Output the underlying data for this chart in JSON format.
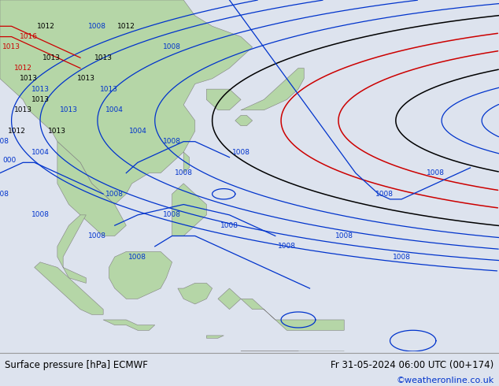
{
  "title_left": "Surface pressure [hPa] ECMWF",
  "title_right": "Fr 31-05-2024 06:00 UTC (00+174)",
  "credit": "©weatheronline.co.uk",
  "land_color": "#b5d6a7",
  "ocean_color": "#d4dce8",
  "border_color": "#808080",
  "contour_blue": "#0033cc",
  "contour_black": "#000000",
  "contour_red": "#cc0000",
  "bottom_bar_color": "#dde3ee",
  "credit_color": "#0033cc",
  "text_color": "#000000",
  "map_lon_min": 88,
  "map_lon_max": 175,
  "map_lat_min": -12,
  "map_lat_max": 55
}
